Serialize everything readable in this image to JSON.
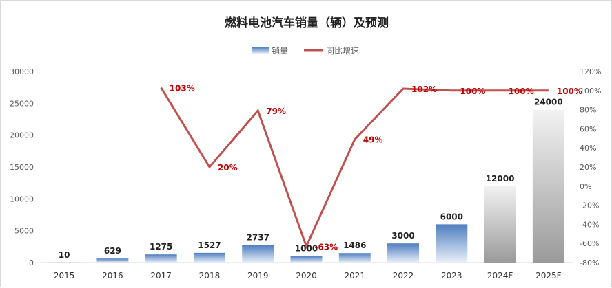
{
  "chart_data": {
    "type": "bar+line",
    "title": "燃料电池汽车销量（辆）及预测",
    "categories": [
      "2015",
      "2016",
      "2017",
      "2018",
      "2019",
      "2020",
      "2021",
      "2022",
      "2023",
      "2024F",
      "2025F"
    ],
    "series": [
      {
        "name": "销量",
        "type": "bar",
        "axis": "left",
        "values": [
          10,
          629,
          1275,
          1527,
          2737,
          1000,
          1486,
          3000,
          6000,
          12000,
          24000
        ],
        "labels": [
          "10",
          "629",
          "1275",
          "1527",
          "2737",
          "1000",
          "1486",
          "3000",
          "6000",
          "12000",
          "24000"
        ]
      },
      {
        "name": "同比增速",
        "type": "line",
        "axis": "right",
        "values": [
          null,
          null,
          103,
          20,
          79,
          -63,
          49,
          102,
          100,
          100,
          100
        ],
        "labels": [
          "",
          "",
          "103%",
          "20%",
          "79%",
          "-63%",
          "49%",
          "102%",
          "100%",
          "100%",
          "100%"
        ]
      }
    ],
    "left_axis": {
      "ylim": [
        0,
        30000
      ],
      "ticks": [
        "0",
        "5000",
        "10000",
        "15000",
        "20000",
        "25000",
        "30000"
      ]
    },
    "right_axis": {
      "ylim": [
        -80,
        120
      ],
      "ticks": [
        "-80%",
        "-60%",
        "-40%",
        "-20%",
        "0%",
        "20%",
        "40%",
        "60%",
        "80%",
        "100%",
        "120%"
      ]
    },
    "legend_position": "top",
    "grid": false,
    "colors": {
      "bar_actual": "#4f7fc0",
      "bar_forecast": "#a6a6a6",
      "line": "#c0504d",
      "line_label": "#c00000"
    }
  }
}
